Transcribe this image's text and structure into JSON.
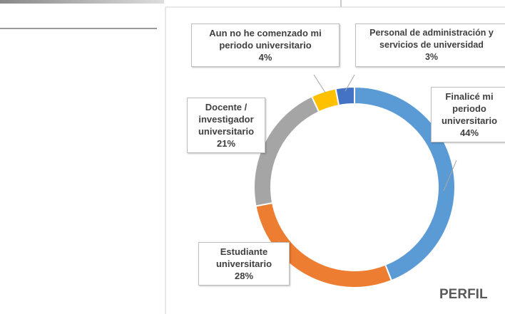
{
  "chart_data": {
    "type": "donut",
    "title": "PERFIL",
    "categories": [
      "Finalicé mi periodo universitario",
      "Estudiante universitario",
      "Docente / investigador universitario",
      "Aun no he comenzado mi periodo universitario",
      "Personal de administración y servicios de universidad"
    ],
    "values": [
      44,
      28,
      21,
      4,
      3
    ],
    "value_labels": [
      "44%",
      "28%",
      "21%",
      "4%",
      "3%"
    ],
    "colors": [
      "#5b9bd5",
      "#ed7d31",
      "#a5a5a5",
      "#ffc000",
      "#4472c4"
    ]
  }
}
